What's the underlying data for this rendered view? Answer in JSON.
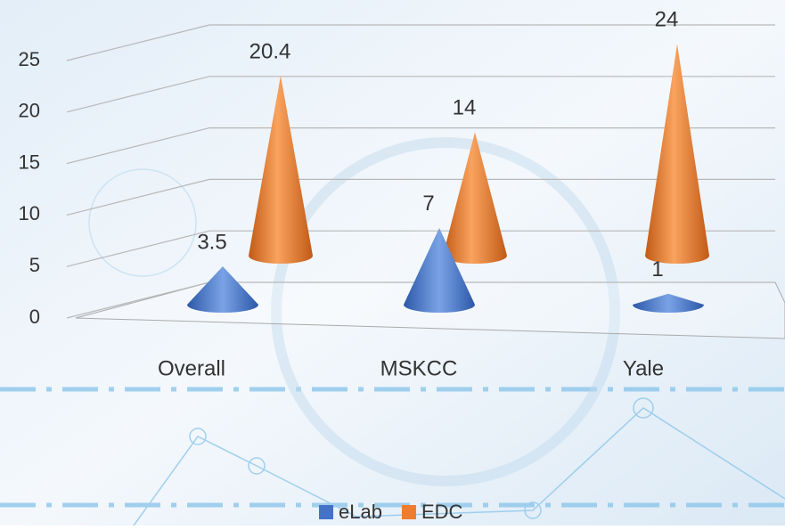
{
  "chart_data": {
    "type": "cone3d",
    "categories": [
      "Overall",
      "MSKCC",
      "Yale"
    ],
    "series": [
      {
        "name": "eLab",
        "color": "#4472c4",
        "values": [
          3.5,
          7,
          1
        ]
      },
      {
        "name": "EDC",
        "color": "#ed7d31",
        "values": [
          20.4,
          14,
          24
        ]
      }
    ],
    "ylim": [
      0,
      25
    ],
    "yticks": [
      0,
      5,
      10,
      15,
      20,
      25
    ],
    "grid": true,
    "legend": "bottom"
  }
}
